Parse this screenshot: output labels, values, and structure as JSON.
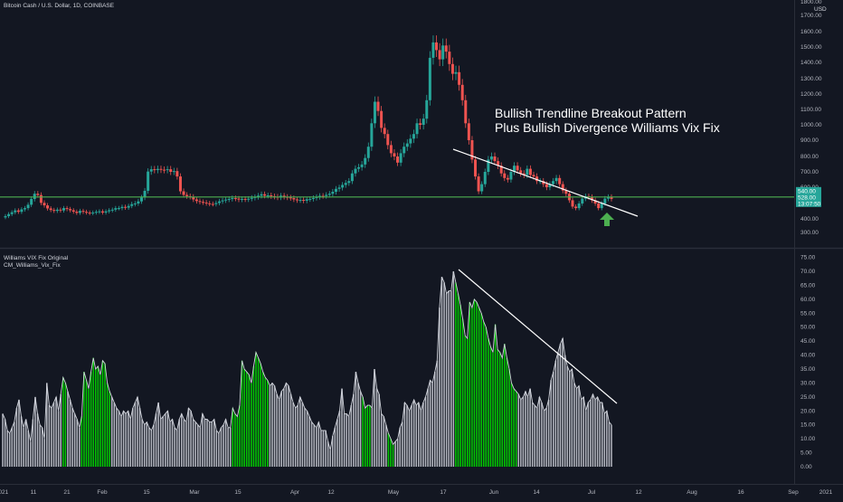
{
  "header": {
    "symbol": "Bitcoin Cash / U.S. Dollar, 1D, COINBASE",
    "indicator": "Williams VIX Fix Original",
    "indicator2": "CM_Williams_Vix_Fix",
    "currency": "USD"
  },
  "annotation": {
    "line1": "Bullish Trendline Breakout Pattern",
    "line2": "Plus Bullish Divergence Williams  Vix Fix"
  },
  "colors": {
    "background": "#131722",
    "up": "#26a69a",
    "down": "#ef5350",
    "horizontal_line": "#4caf50",
    "trendline": "#ffffff",
    "vix_gray": "#b2b5be",
    "vix_green": "#00c800",
    "arrow": "#4caf50"
  },
  "chart_data": [
    {
      "type": "candlestick",
      "title": "Bitcoin Cash / U.S. Dollar, 1D, COINBASE",
      "ylabel": "USD",
      "ylim": [
        300,
        1800
      ],
      "y_ticks": [
        "1800.00",
        "1700.00",
        "1600.00",
        "1500.00",
        "1400.00",
        "1300.00",
        "1200.00",
        "1100.00",
        "1000.00",
        "900.00",
        "800.00",
        "700.00",
        "600.00",
        "500.00",
        "400.00",
        "300.00"
      ],
      "x_ticks": [
        "2021",
        "11",
        "21",
        "Feb",
        "15",
        "Mar",
        "15",
        "Apr",
        "12",
        "May",
        "17",
        "Jun",
        "14",
        "Jul",
        "12",
        "Aug",
        "16",
        "Sep",
        "2021"
      ],
      "price_labels": [
        "540.00",
        "528.00",
        "13:07:50"
      ],
      "horizontal_level": 540,
      "closes": [
        418,
        431,
        443,
        455,
        446,
        462,
        470,
        492,
        528,
        560,
        552,
        504,
        488,
        468,
        458,
        452,
        460,
        455,
        470,
        464,
        456,
        447,
        439,
        452,
        446,
        441,
        437,
        441,
        446,
        449,
        441,
        449,
        456,
        460,
        470,
        470,
        478,
        473,
        484,
        496,
        500,
        513,
        537,
        578,
        702,
        717,
        712,
        719,
        714,
        712,
        717,
        700,
        705,
        670,
        575,
        553,
        545,
        541,
        525,
        515,
        510,
        506,
        501,
        497,
        496,
        503,
        513,
        519,
        524,
        528,
        533,
        530,
        524,
        528,
        525,
        529,
        535,
        540,
        548,
        557,
        548,
        550,
        545,
        542,
        537,
        548,
        541,
        537,
        533,
        525,
        520,
        522,
        517,
        526,
        528,
        534,
        540,
        547,
        546,
        553,
        560,
        572,
        590,
        598,
        615,
        628,
        640,
        690,
        720,
        730,
        748,
        790,
        860,
        1010,
        1150,
        1090,
        980,
        940,
        870,
        820,
        800,
        760,
        820,
        860,
        880,
        910,
        940,
        1010,
        1000,
        1040,
        1160,
        1430,
        1530,
        1480,
        1420,
        1510,
        1470,
        1390,
        1330,
        1340,
        1260,
        1160,
        1010,
        900,
        780,
        670,
        575,
        620,
        700,
        780,
        800,
        770,
        740,
        690,
        660,
        650,
        700,
        740,
        710,
        690,
        680,
        720,
        680,
        670,
        640,
        640,
        620,
        600,
        620,
        640,
        660,
        620,
        580,
        560,
        520,
        480,
        470,
        500,
        530,
        545,
        540,
        520,
        500,
        470,
        500,
        530,
        540,
        528
      ],
      "trendline": [
        [
          501,
          165
        ],
        [
          705,
          239
        ]
      ],
      "arrow_up": true
    },
    {
      "type": "bar",
      "title": "Williams VIX Fix Original",
      "ylim": [
        0,
        75
      ],
      "y_ticks": [
        "75.00",
        "70.00",
        "65.00",
        "60.00",
        "55.00",
        "50.00",
        "45.00",
        "40.00",
        "35.00",
        "30.00",
        "25.00",
        "20.00",
        "15.00",
        "10.00",
        "5.00",
        "0.00"
      ],
      "values": [
        19,
        17,
        13,
        12,
        14,
        16,
        21,
        24,
        18,
        14,
        17,
        13,
        9,
        17,
        25,
        19,
        15,
        14,
        10,
        30,
        22,
        21,
        23,
        25,
        20,
        26,
        32,
        30,
        27,
        24,
        21,
        19,
        17,
        14,
        18,
        34,
        31,
        28,
        34,
        39,
        35,
        36,
        33,
        38,
        37,
        30,
        27,
        25,
        23,
        21,
        20,
        18,
        20,
        19,
        20,
        17,
        21,
        23,
        25,
        21,
        17,
        15,
        16,
        14,
        13,
        15,
        19,
        23,
        17,
        18,
        19,
        20,
        16,
        17,
        14,
        13,
        17,
        19,
        17,
        16,
        21,
        20,
        17,
        16,
        15,
        14,
        19,
        17,
        17,
        16,
        16,
        17,
        13,
        12,
        14,
        15,
        17,
        14,
        14,
        21,
        19,
        18,
        22,
        38,
        35,
        34,
        33,
        30,
        36,
        41,
        39,
        37,
        34,
        32,
        31,
        29,
        30,
        29,
        26,
        24,
        27,
        28,
        30,
        29,
        26,
        23,
        21,
        22,
        25,
        23,
        21,
        20,
        18,
        16,
        15,
        14,
        16,
        13,
        13,
        13,
        9,
        6,
        11,
        14,
        17,
        20,
        28,
        19,
        19,
        18,
        22,
        26,
        34,
        30,
        27,
        25,
        21,
        22,
        22,
        21,
        35,
        28,
        26,
        19,
        18,
        15,
        12,
        10,
        8,
        9,
        10,
        14,
        16,
        23,
        22,
        20,
        22,
        24,
        22,
        23,
        20,
        23,
        25,
        28,
        31,
        30,
        34,
        38,
        57,
        68,
        66,
        62,
        63,
        63,
        70,
        66,
        62,
        58,
        53,
        47,
        46,
        59,
        57,
        60,
        59,
        57,
        55,
        52,
        50,
        46,
        43,
        41,
        51,
        42,
        41,
        39,
        44,
        39,
        35,
        30,
        28,
        27,
        26,
        24,
        25,
        27,
        25,
        28,
        23,
        22,
        21,
        25,
        23,
        20,
        21,
        24,
        31,
        34,
        38,
        41,
        44,
        46,
        40,
        36,
        34,
        35,
        30,
        28,
        29,
        24,
        25,
        20,
        23,
        24,
        26,
        24,
        25,
        23,
        23,
        19,
        20,
        16,
        15
      ],
      "green_ranges": [
        [
          26,
          27
        ],
        [
          34,
          46
        ],
        [
          99,
          114
        ],
        [
          155,
          158
        ],
        [
          166,
          168
        ],
        [
          195,
          221
        ]
      ],
      "trendline": [
        [
          507,
          298
        ],
        [
          682,
          446
        ]
      ]
    }
  ]
}
